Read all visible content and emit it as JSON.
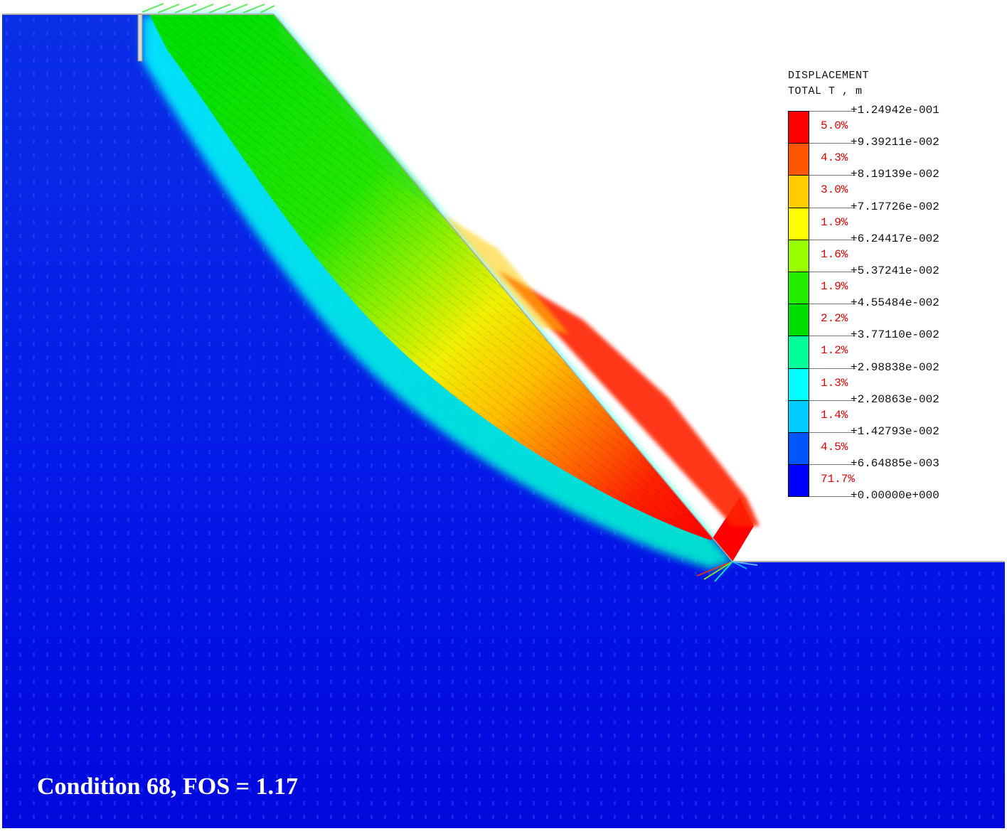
{
  "chart_data": {
    "type": "heatmap",
    "title": "DISPLACEMENT",
    "subtitle": "TOTAL T , m",
    "annotation": "Condition 68, FOS = 1.17",
    "condition": 68,
    "fos": 1.17,
    "units": "m",
    "legend_position": "right",
    "colorbar": {
      "levels": [
        "+1.24942e-001",
        "+9.39211e-002",
        "+8.19139e-002",
        "+7.17726e-002",
        "+6.24417e-002",
        "+5.37241e-002",
        "+4.55484e-002",
        "+3.77110e-002",
        "+2.98838e-002",
        "+2.20863e-002",
        "+1.42793e-002",
        "+6.64885e-003",
        "+0.00000e+000"
      ],
      "bands": [
        {
          "from": 0.0939211,
          "to": 0.124942,
          "percent": "5.0%",
          "color": "#ff0000"
        },
        {
          "from": 0.0819139,
          "to": 0.0939211,
          "percent": "4.3%",
          "color": "#ff5500"
        },
        {
          "from": 0.0717726,
          "to": 0.0819139,
          "percent": "3.0%",
          "color": "#ffcc00"
        },
        {
          "from": 0.0624417,
          "to": 0.0717726,
          "percent": "1.9%",
          "color": "#ffff00"
        },
        {
          "from": 0.0537241,
          "to": 0.0624417,
          "percent": "1.6%",
          "color": "#99ff00"
        },
        {
          "from": 0.0455484,
          "to": 0.0537241,
          "percent": "1.9%",
          "color": "#22ee00"
        },
        {
          "from": 0.037711,
          "to": 0.0455484,
          "percent": "2.2%",
          "color": "#00dd00"
        },
        {
          "from": 0.0298838,
          "to": 0.037711,
          "percent": "1.2%",
          "color": "#00ff99"
        },
        {
          "from": 0.0220863,
          "to": 0.0298838,
          "percent": "1.3%",
          "color": "#00ffff"
        },
        {
          "from": 0.0142793,
          "to": 0.0220863,
          "percent": "1.4%",
          "color": "#00ccff"
        },
        {
          "from": 0.00664885,
          "to": 0.0142793,
          "percent": "4.5%",
          "color": "#0055ff"
        },
        {
          "from": 0.0,
          "to": 0.00664885,
          "percent": "71.7%",
          "color": "#0000ff"
        }
      ],
      "max": 0.124942,
      "min": 0.0
    }
  },
  "legend": {
    "title_line1": "DISPLACEMENT",
    "title_line2": "TOTAL T , m",
    "labels": [
      "+1.24942e-001",
      "+9.39211e-002",
      "+8.19139e-002",
      "+7.17726e-002",
      "+6.24417e-002",
      "+5.37241e-002",
      "+4.55484e-002",
      "+3.77110e-002",
      "+2.98838e-002",
      "+2.20863e-002",
      "+1.42793e-002",
      "+6.64885e-003",
      "+0.00000e+000"
    ],
    "percents": [
      "5.0%",
      "4.3%",
      "3.0%",
      "1.9%",
      "1.6%",
      "1.9%",
      "2.2%",
      "1.2%",
      "1.3%",
      "1.4%",
      "4.5%",
      "71.7%"
    ],
    "colors": [
      "#ff0000",
      "#ff5500",
      "#ffcc00",
      "#ffff00",
      "#99ff00",
      "#22ee00",
      "#00dd00",
      "#00ff99",
      "#00ffff",
      "#00ccff",
      "#0055ff",
      "#0000ff"
    ]
  },
  "caption": "Condition 68, FOS = 1.17"
}
